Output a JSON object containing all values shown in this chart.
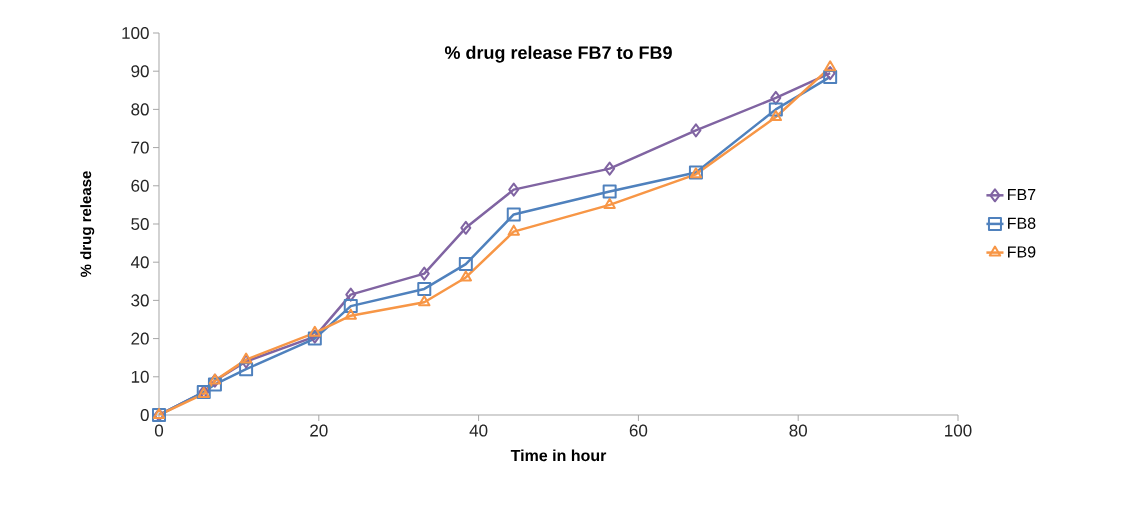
{
  "chart_data": {
    "type": "line",
    "title": "% drug release FB7 to FB9",
    "xlabel": "Time in hour",
    "ylabel": "% drug release",
    "x": [
      0,
      5.6,
      7,
      10.9,
      19.5,
      24,
      33.2,
      38.4,
      44.4,
      56.4,
      67.2,
      77.2,
      84
    ],
    "xlim": [
      0,
      100
    ],
    "xticks": [
      0,
      20,
      40,
      60,
      80,
      100
    ],
    "ylim": [
      0,
      100
    ],
    "yticks": [
      0,
      10,
      20,
      30,
      40,
      50,
      60,
      70,
      80,
      90,
      100
    ],
    "grid": false,
    "legend": "right",
    "series": [
      {
        "name": "FB7",
        "color": "#8064a2",
        "marker": "diamond",
        "values": [
          0,
          6,
          9,
          14,
          20.5,
          31.5,
          37,
          49,
          59,
          64.5,
          74.5,
          83,
          89.5
        ]
      },
      {
        "name": "FB8",
        "color": "#4f81bd",
        "marker": "square",
        "values": [
          0,
          6,
          8,
          12,
          20,
          28.5,
          33,
          39.5,
          52.5,
          58.5,
          63.5,
          80,
          88.5
        ]
      },
      {
        "name": "FB9",
        "color": "#f79646",
        "marker": "triangle",
        "values": [
          0,
          5.5,
          9,
          14.5,
          21.5,
          26,
          29.5,
          36,
          48,
          55,
          63,
          78,
          91
        ]
      }
    ]
  }
}
